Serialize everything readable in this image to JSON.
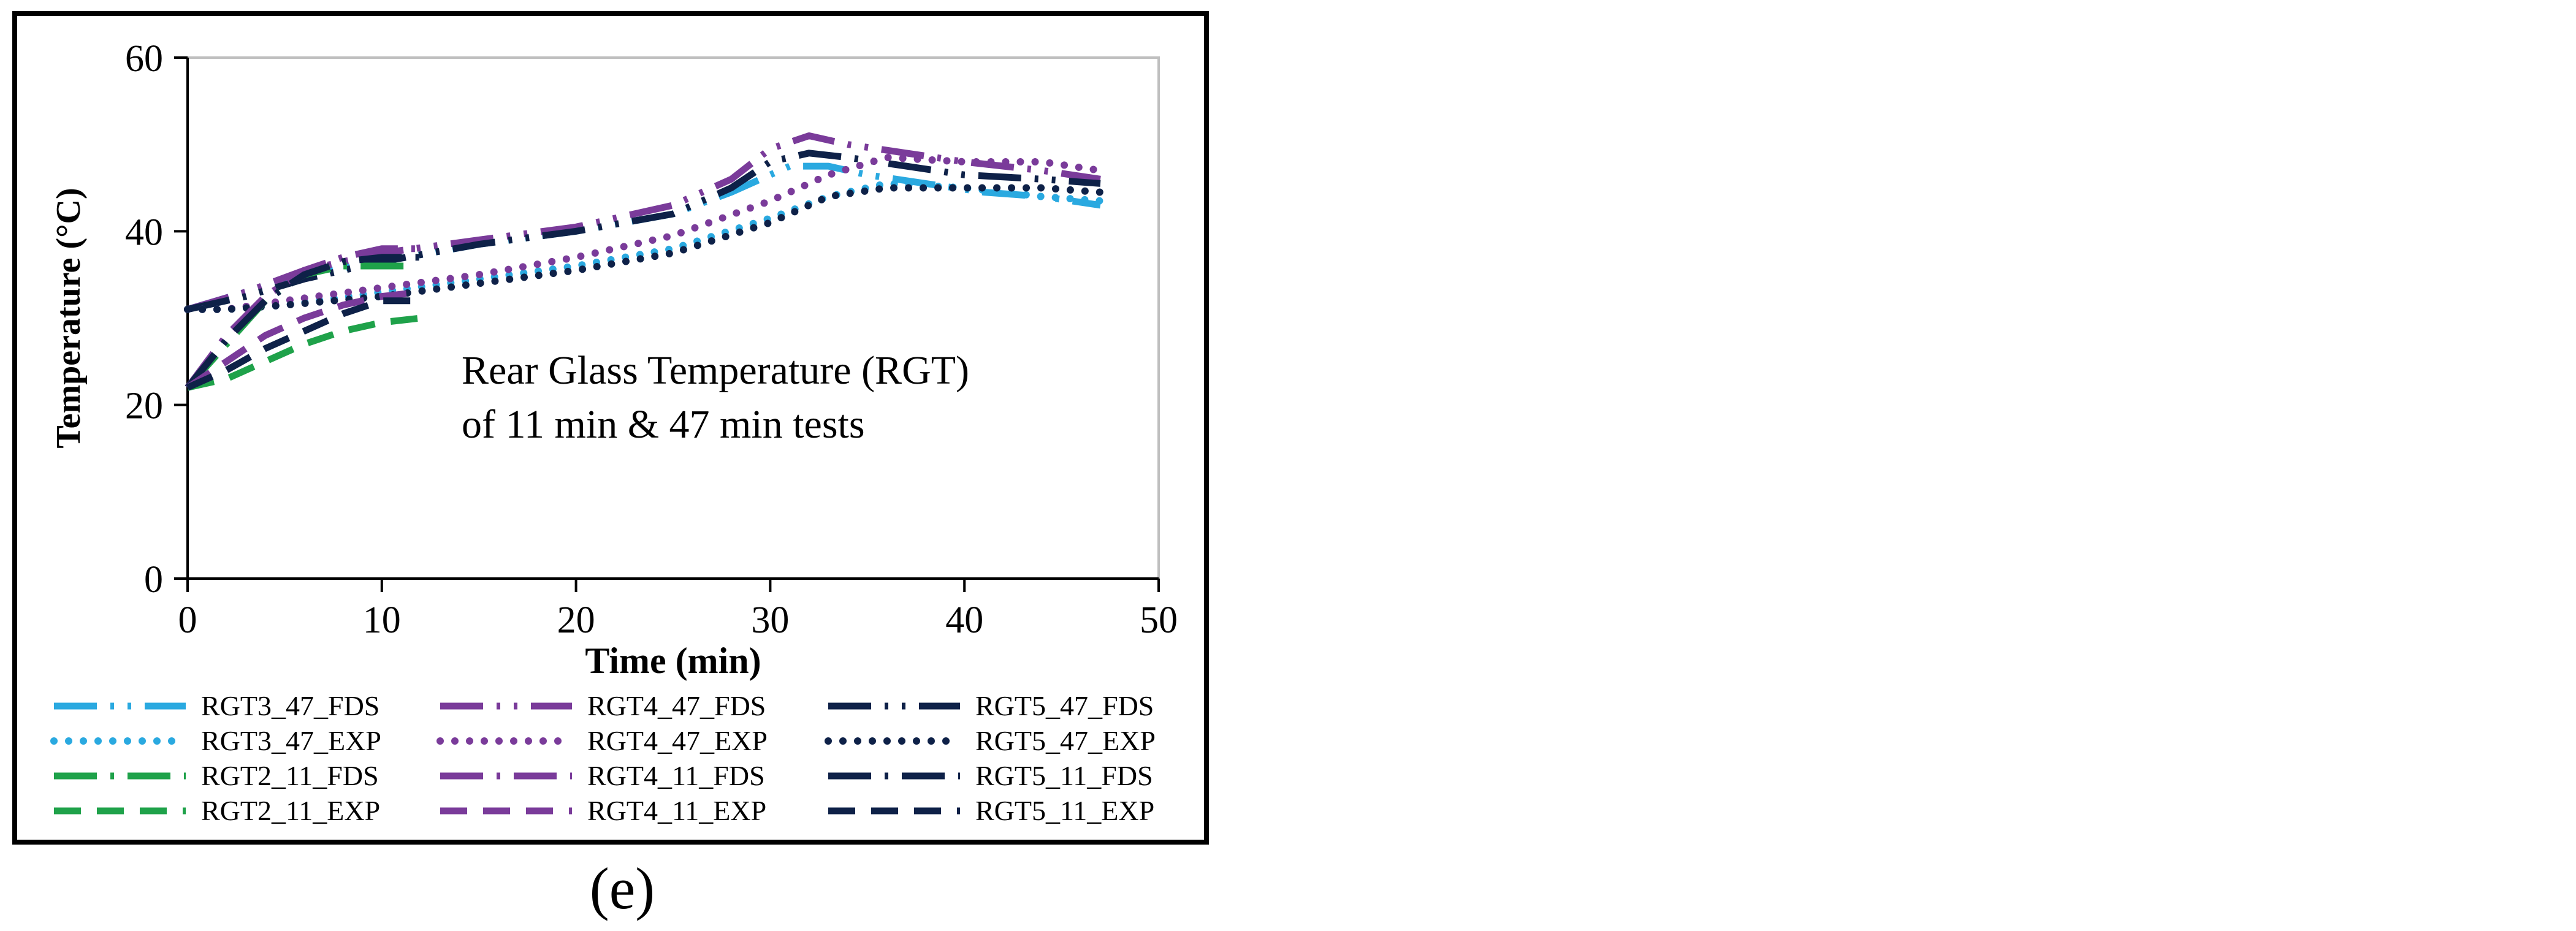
{
  "panel_label": "(e)",
  "chart_data": {
    "type": "line",
    "xlabel": "Time (min)",
    "ylabel": "Temperature (°C)",
    "xlim": [
      0,
      50
    ],
    "ylim": [
      0,
      60
    ],
    "xticks": [
      0,
      10,
      20,
      30,
      40,
      50
    ],
    "yticks": [
      0,
      20,
      40,
      60
    ],
    "grid": false,
    "legend_position": "bottom",
    "annotation": [
      "Rear Glass Temperature (RGT)",
      "of 11 min & 47 min tests"
    ],
    "series": [
      {
        "name": "RGT3_47_FDS",
        "color": "#2aa9e0",
        "style": "longdash-dot-dot",
        "x": [
          0,
          3,
          6,
          10,
          15,
          20,
          25,
          28,
          31,
          33,
          35,
          38,
          41,
          44,
          47
        ],
        "y": [
          31,
          33,
          35,
          36.5,
          38.5,
          40,
          42,
          44.5,
          47.5,
          47.5,
          46.5,
          45.5,
          44.5,
          44,
          43
        ]
      },
      {
        "name": "RGT4_47_FDS",
        "color": "#7a3b9a",
        "style": "longdash-dot-dot",
        "x": [
          0,
          3,
          6,
          10,
          15,
          20,
          25,
          28,
          30,
          32,
          34,
          37,
          40,
          44,
          47
        ],
        "y": [
          31,
          33,
          35.5,
          37.5,
          39,
          40.5,
          43,
          46,
          49.5,
          51,
          50,
          49,
          48,
          47,
          46
        ]
      },
      {
        "name": "RGT5_47_FDS",
        "color": "#0e2148",
        "style": "longdash-dot-dot",
        "x": [
          0,
          3,
          6,
          10,
          15,
          20,
          25,
          28,
          30,
          32,
          34,
          37,
          40,
          44,
          47
        ],
        "y": [
          31,
          32.5,
          34.5,
          36.5,
          38.5,
          40,
          42,
          45,
          48,
          49,
          48.5,
          47.5,
          46.5,
          46,
          45.5
        ]
      },
      {
        "name": "RGT3_47_EXP",
        "color": "#2aa9e0",
        "style": "dotted",
        "x": [
          0,
          2,
          5,
          10,
          15,
          20,
          25,
          30,
          33,
          36,
          40,
          44,
          47
        ],
        "y": [
          31,
          31,
          31.5,
          33,
          34.5,
          36,
          38,
          41.5,
          44,
          45.5,
          45,
          44,
          43.5
        ]
      },
      {
        "name": "RGT4_47_EXP",
        "color": "#7a3b9a",
        "style": "dotted",
        "x": [
          0,
          2,
          5,
          10,
          15,
          20,
          25,
          30,
          33,
          36,
          40,
          44,
          47
        ],
        "y": [
          31,
          31,
          32,
          33.5,
          35,
          37,
          39.5,
          43.5,
          46.5,
          48.5,
          48,
          48,
          47
        ]
      },
      {
        "name": "RGT5_47_EXP",
        "color": "#0e2148",
        "style": "dotted",
        "x": [
          0,
          2,
          5,
          10,
          15,
          20,
          25,
          30,
          33,
          36,
          40,
          44,
          47
        ],
        "y": [
          31,
          31,
          31.5,
          32.5,
          34,
          35.5,
          37.5,
          41,
          44,
          45,
          45,
          45,
          44.5
        ]
      },
      {
        "name": "RGT2_11_FDS",
        "color": "#1fa24a",
        "style": "longdash-dot",
        "x": [
          0,
          2,
          4,
          6,
          8,
          10,
          11.5
        ],
        "y": [
          22,
          27,
          32,
          35,
          36,
          36,
          36
        ]
      },
      {
        "name": "RGT4_11_FDS",
        "color": "#7a3b9a",
        "style": "longdash-dot",
        "x": [
          0,
          2,
          4,
          6,
          8,
          10,
          12
        ],
        "y": [
          22,
          28,
          32.5,
          35.5,
          37,
          38,
          38
        ]
      },
      {
        "name": "RGT5_11_FDS",
        "color": "#0e2148",
        "style": "longdash-dot",
        "x": [
          0,
          2,
          4,
          6,
          8,
          10,
          12
        ],
        "y": [
          22,
          27.5,
          32,
          35,
          36.5,
          37,
          37
        ]
      },
      {
        "name": "RGT2_11_EXP",
        "color": "#1fa24a",
        "style": "dashed",
        "x": [
          0,
          2,
          4,
          6,
          8,
          10,
          12
        ],
        "y": [
          22,
          23,
          25,
          27,
          28.5,
          29.5,
          30
        ]
      },
      {
        "name": "RGT4_11_EXP",
        "color": "#7a3b9a",
        "style": "dashed",
        "x": [
          0,
          2,
          4,
          6,
          8,
          10,
          12
        ],
        "y": [
          22,
          25,
          28,
          30,
          31.5,
          32.5,
          33
        ]
      },
      {
        "name": "RGT5_11_EXP",
        "color": "#0e2148",
        "style": "dashed",
        "x": [
          0,
          2,
          4,
          6,
          8,
          10,
          12
        ],
        "y": [
          22,
          24,
          26.5,
          28.5,
          30.5,
          32,
          32
        ]
      }
    ]
  }
}
